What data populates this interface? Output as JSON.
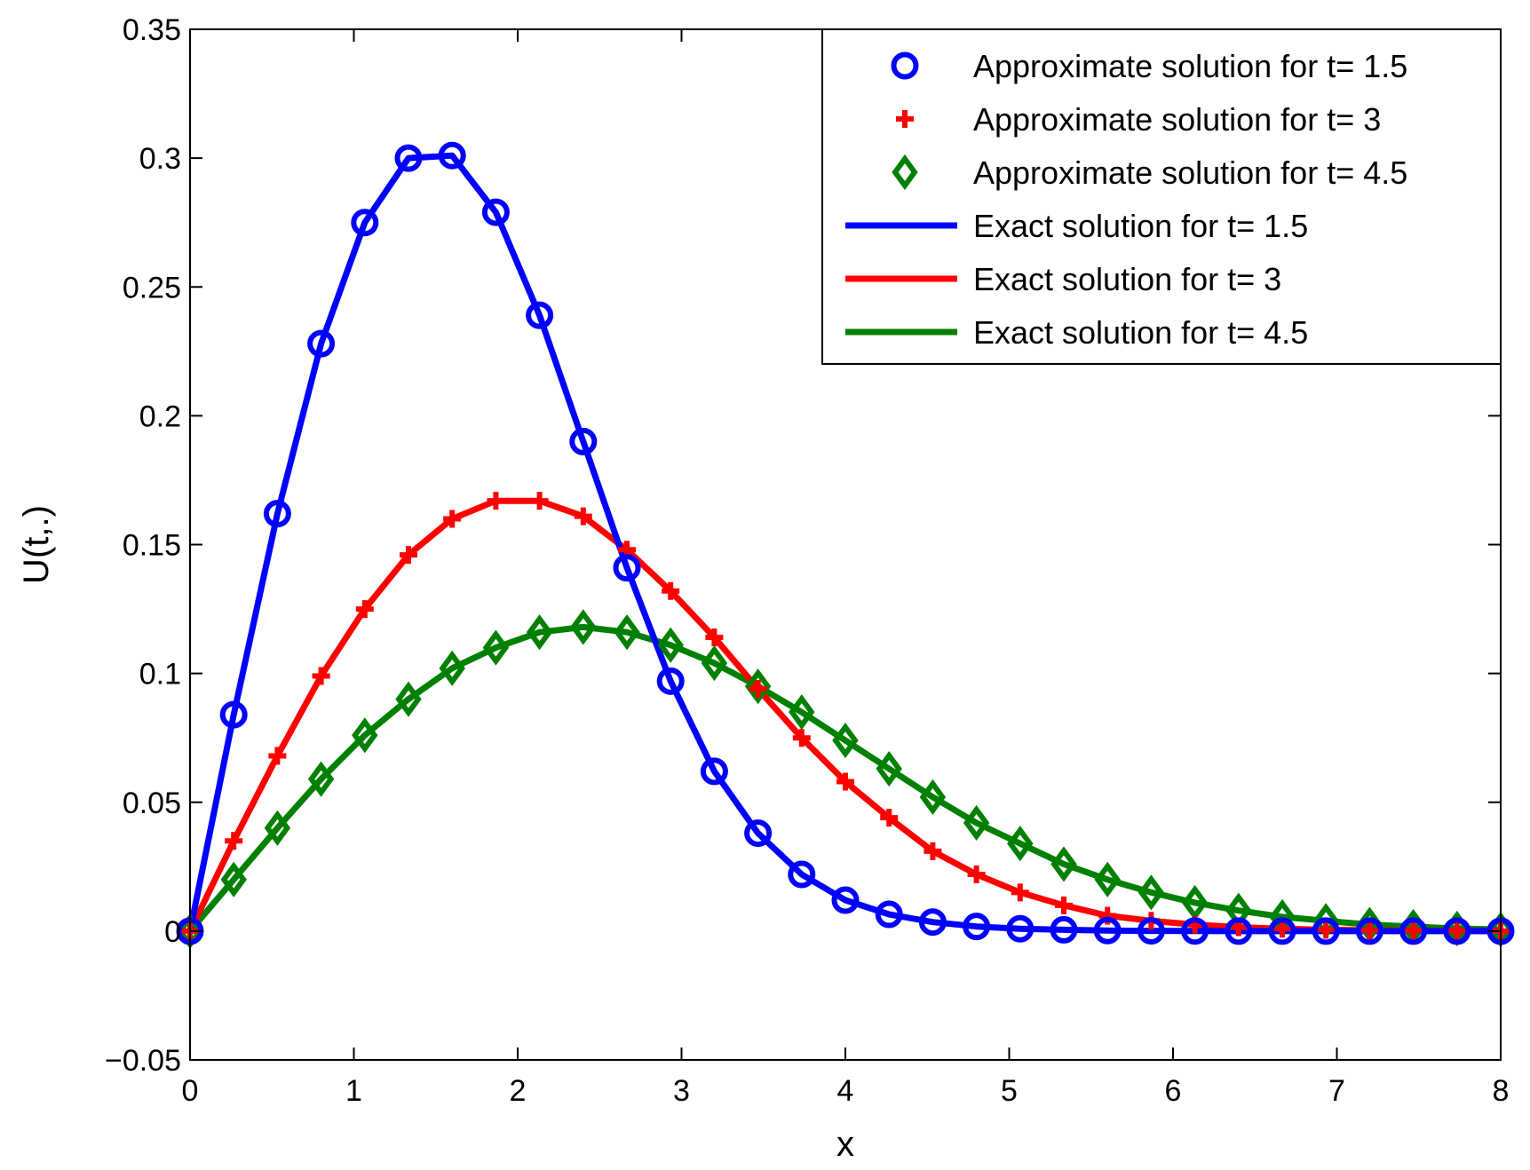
{
  "chart_data": {
    "type": "line",
    "title": "",
    "xlabel": "x",
    "ylabel": "U(t,.)",
    "xlim": [
      0,
      8
    ],
    "ylim": [
      -0.05,
      0.35
    ],
    "x_ticks": [
      0,
      1,
      2,
      3,
      4,
      5,
      6,
      7,
      8
    ],
    "x_tick_labels": [
      "0",
      "1",
      "2",
      "3",
      "4",
      "5",
      "6",
      "7",
      "8"
    ],
    "y_ticks": [
      -0.05,
      0,
      0.05,
      0.1,
      0.15,
      0.2,
      0.25,
      0.3,
      0.35
    ],
    "y_tick_labels": [
      "−0.05",
      "0",
      "0.05",
      "0.1",
      "0.15",
      "0.2",
      "0.25",
      "0.3",
      "0.35"
    ],
    "grid": false,
    "legend_position": "top-right",
    "x": [
      0,
      0.2667,
      0.5333,
      0.8,
      1.0667,
      1.3333,
      1.6,
      1.8667,
      2.1333,
      2.4,
      2.6667,
      2.9333,
      3.2,
      3.4667,
      3.7333,
      4.0,
      4.2667,
      4.5333,
      4.8,
      5.0667,
      5.3333,
      5.6,
      5.8667,
      6.1333,
      6.4,
      6.6667,
      6.9333,
      7.2,
      7.4667,
      7.7333,
      8.0
    ],
    "series": [
      {
        "name": "t= 1.5",
        "approx_label": "Approximate solution for t= 1.5",
        "exact_label": "Exact solution for t= 1.5",
        "color": "#0000ff",
        "marker": "circle",
        "values": [
          0,
          0.084,
          0.162,
          0.228,
          0.275,
          0.3,
          0.301,
          0.279,
          0.239,
          0.19,
          0.141,
          0.097,
          0.062,
          0.038,
          0.022,
          0.012,
          0.0065,
          0.0035,
          0.0018,
          0.0009,
          0.0005,
          0.0002,
          0.0001,
          5e-05,
          0,
          0,
          0,
          0,
          0,
          0,
          0
        ]
      },
      {
        "name": "t= 3",
        "approx_label": "Approximate solution for t= 3",
        "exact_label": "Exact solution for t= 3",
        "color": "#ff0000",
        "marker": "plus",
        "values": [
          0,
          0.035,
          0.068,
          0.099,
          0.125,
          0.146,
          0.16,
          0.167,
          0.167,
          0.161,
          0.148,
          0.132,
          0.114,
          0.094,
          0.075,
          0.058,
          0.044,
          0.031,
          0.022,
          0.015,
          0.01,
          0.006,
          0.004,
          0.0025,
          0.0015,
          0.0009,
          0.0005,
          0.0003,
          0.0002,
          0.0001,
          0
        ]
      },
      {
        "name": "t= 4.5",
        "approx_label": "Approximate solution for t= 4.5",
        "exact_label": "Exact solution for t= 4.5",
        "color": "#008000",
        "marker": "diamond",
        "values": [
          0,
          0.02,
          0.04,
          0.059,
          0.076,
          0.09,
          0.102,
          0.11,
          0.116,
          0.118,
          0.116,
          0.111,
          0.104,
          0.095,
          0.085,
          0.074,
          0.063,
          0.052,
          0.042,
          0.034,
          0.026,
          0.02,
          0.015,
          0.011,
          0.008,
          0.0055,
          0.004,
          0.0025,
          0.0017,
          0.001,
          0.0006
        ]
      }
    ]
  }
}
